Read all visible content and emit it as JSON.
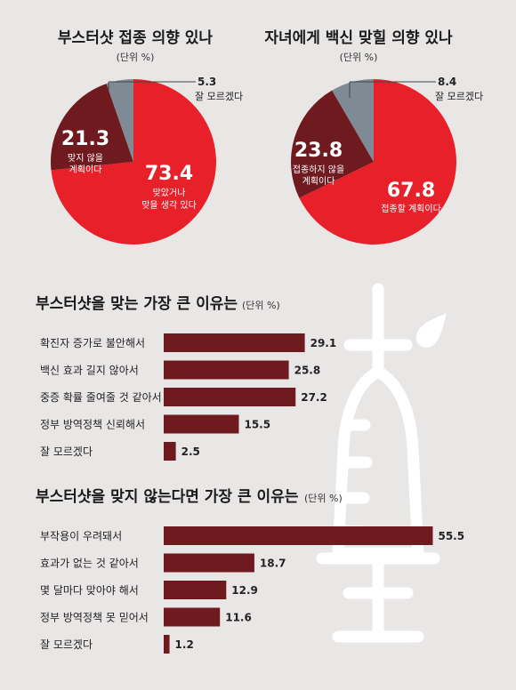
{
  "colors": {
    "red": "#e8202a",
    "darkred": "#6e1a1f",
    "gray": "#7e8b94",
    "bar": "#6e1a1f",
    "syringe": "#ffffff"
  },
  "chart_data": [
    {
      "type": "pie",
      "title": "부스터샷 접종 의향 있나",
      "unit": "(단위 %)",
      "slices": [
        {
          "value": 73.4,
          "value_label": "73.4",
          "label": [
            "맞았거나",
            "맞을 생각 있다"
          ],
          "color": "#e8202a"
        },
        {
          "value": 21.3,
          "value_label": "21.3",
          "label": [
            "맞지 않을",
            "계획이다"
          ],
          "color": "#6e1a1f"
        },
        {
          "value": 5.3,
          "value_label": "5.3",
          "label": [
            "잘 모르겠다"
          ],
          "color": "#7e8b94"
        }
      ]
    },
    {
      "type": "pie",
      "title": "자녀에게 백신 맞힐 의향 있나",
      "unit": "(단위 %)",
      "slices": [
        {
          "value": 67.8,
          "value_label": "67.8",
          "label": [
            "접종할 계획이다"
          ],
          "color": "#e8202a"
        },
        {
          "value": 23.8,
          "value_label": "23.8",
          "label": [
            "접종하지 않을",
            "계획이다"
          ],
          "color": "#6e1a1f"
        },
        {
          "value": 8.4,
          "value_label": "8.4",
          "label": [
            "잘 모르겠다"
          ],
          "color": "#7e8b94"
        }
      ]
    },
    {
      "type": "bar",
      "title": "부스터샷을 맞는 가장 큰 이유는",
      "unit": "(단위 %)",
      "categories": [
        "확진자 증가로 불안해서",
        "백신 효과 길지 않아서",
        "중증 확률 줄여줄 것 같아서",
        "정부 방역정책 신뢰해서",
        "잘 모르겠다"
      ],
      "values": [
        29.1,
        25.8,
        27.2,
        15.5,
        2.5
      ],
      "value_labels": [
        "29.1",
        "25.8",
        "27.2",
        "15.5",
        "2.5"
      ]
    },
    {
      "type": "bar",
      "title": "부스터샷을 맞지 않는다면 가장 큰 이유는",
      "unit": "(단위 %)",
      "categories": [
        "부작용이 우려돼서",
        "효과가 없는 것 같아서",
        "몇 달마다 맞아야 해서",
        "정부 방역정책 못 믿어서",
        "잘 모르겠다"
      ],
      "values": [
        55.5,
        18.7,
        12.9,
        11.6,
        1.2
      ],
      "value_labels": [
        "55.5",
        "18.7",
        "12.9",
        "11.6",
        "1.2"
      ]
    }
  ]
}
